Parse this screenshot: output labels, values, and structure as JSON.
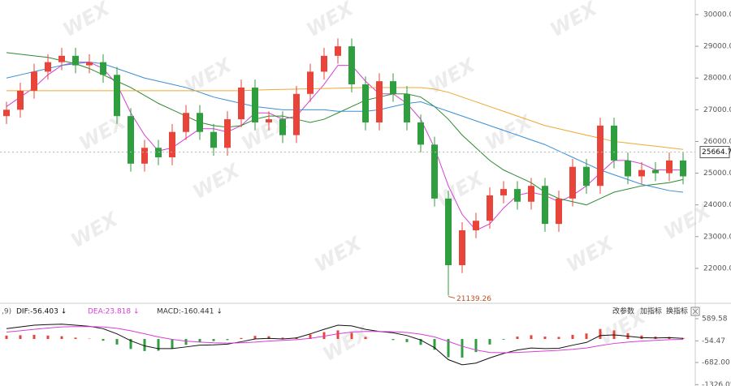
{
  "chart_data": [
    {
      "type": "candlestick",
      "up_color": "#e8443a",
      "down_color": "#2e9e3e",
      "open": [
        26800,
        27000,
        27600,
        28200,
        28500,
        28700,
        28400,
        28500,
        28100,
        26800,
        25300,
        25800,
        25500,
        26300,
        26900,
        26300,
        25800,
        26700,
        27700,
        26600,
        26700,
        26200,
        27500,
        28200,
        28700,
        29000,
        27800,
        26600,
        27900,
        27500,
        26600,
        25900,
        24200,
        22100,
        23200,
        23500,
        24300,
        24500,
        24100,
        24600,
        23400,
        24200,
        25200,
        24600,
        26500,
        25400,
        24900,
        25100,
        25000,
        25400
      ],
      "high": [
        27250,
        27850,
        28450,
        28750,
        28950,
        28950,
        28750,
        28750,
        28350,
        27050,
        26050,
        26050,
        26550,
        27150,
        27150,
        26550,
        26950,
        27950,
        27950,
        26950,
        26950,
        27750,
        28450,
        28950,
        29250,
        29250,
        28050,
        28150,
        28150,
        27750,
        26850,
        26150,
        24450,
        23450,
        23750,
        24550,
        24750,
        24750,
        24850,
        24850,
        24450,
        25450,
        25450,
        26750,
        26750,
        25650,
        25350,
        25350,
        25650,
        25650
      ],
      "low": [
        26550,
        26750,
        27350,
        27950,
        28250,
        28150,
        28150,
        27850,
        26550,
        25050,
        25050,
        25250,
        25250,
        26050,
        26050,
        25550,
        25550,
        26450,
        26350,
        26350,
        25950,
        25950,
        27250,
        27950,
        28450,
        27550,
        26350,
        26350,
        27250,
        26350,
        25650,
        23950,
        21139.26,
        21850,
        22950,
        23250,
        24050,
        23850,
        23850,
        23150,
        23150,
        23950,
        24350,
        24350,
        25150,
        24650,
        24650,
        24750,
        24750,
        24650
      ],
      "close": [
        27000,
        27600,
        28200,
        28500,
        28700,
        28400,
        28500,
        28100,
        26800,
        25300,
        25800,
        25500,
        26300,
        26900,
        26300,
        25800,
        26700,
        27700,
        26600,
        26700,
        26200,
        27500,
        28200,
        28700,
        29000,
        27800,
        26600,
        27900,
        27500,
        26600,
        25900,
        24200,
        22100,
        23200,
        23500,
        24300,
        24500,
        24100,
        24600,
        23400,
        24200,
        25200,
        24600,
        26500,
        25400,
        24900,
        25100,
        25000,
        25400,
        24900
      ],
      "series": [
        {
          "color": "#d63fd6",
          "values": [
            27100,
            27400,
            27700,
            28100,
            28400,
            28500,
            28500,
            28300,
            27800,
            26900,
            26200,
            25700,
            25800,
            26100,
            26400,
            26400,
            26300,
            26500,
            26900,
            26900,
            26700,
            26800,
            27300,
            27800,
            28400,
            28400,
            27900,
            27500,
            27500,
            27200,
            26700,
            25800,
            24600,
            23700,
            23200,
            23400,
            23900,
            24300,
            24400,
            24300,
            24100,
            24300,
            24600,
            25000,
            25400,
            25400,
            25300,
            25100,
            25100,
            25100
          ]
        },
        {
          "color": "#2e8b2e",
          "values": [
            28800,
            28750,
            28700,
            28650,
            28550,
            28450,
            28300,
            28100,
            27900,
            27700,
            27450,
            27200,
            27000,
            26800,
            26600,
            26500,
            26450,
            26500,
            26700,
            26800,
            26800,
            26700,
            26600,
            26700,
            26900,
            27100,
            27300,
            27400,
            27500,
            27500,
            27400,
            27100,
            26700,
            26200,
            25800,
            25400,
            25100,
            24900,
            24700,
            24400,
            24200,
            24100,
            24000,
            24200,
            24400,
            24500,
            24600,
            24650,
            24700,
            24800
          ]
        },
        {
          "color": "#3a8fd6",
          "values": [
            28000,
            28100,
            28200,
            28300,
            28400,
            28450,
            28500,
            28450,
            28300,
            28150,
            28000,
            27900,
            27800,
            27700,
            27550,
            27400,
            27300,
            27200,
            27100,
            27050,
            27000,
            27000,
            27000,
            27000,
            26950,
            26950,
            26950,
            27000,
            27100,
            27200,
            27250,
            27100,
            26950,
            26800,
            26650,
            26500,
            26350,
            26200,
            26050,
            25900,
            25700,
            25500,
            25300,
            25100,
            24950,
            24800,
            24650,
            24550,
            24450,
            24400
          ]
        },
        {
          "color": "#f0a830",
          "values": [
            27600,
            27600,
            27600,
            27600,
            27600,
            27600,
            27600,
            27600,
            27600,
            27600,
            27600,
            27600,
            27600,
            27600,
            27600,
            27600,
            27600,
            27600,
            27620,
            27630,
            27640,
            27650,
            27660,
            27670,
            27680,
            27690,
            27700,
            27700,
            27700,
            27700,
            27700,
            27650,
            27550,
            27400,
            27250,
            27100,
            26950,
            26800,
            26650,
            26500,
            26400,
            26300,
            26200,
            26100,
            26000,
            25950,
            25900,
            25850,
            25800,
            25750
          ]
        }
      ],
      "last_price": 25664.7,
      "ylim": [
        21000,
        30460
      ],
      "yticks": [
        {
          "value": 30000,
          "label": "30000.0"
        },
        {
          "value": 29000,
          "label": "29000.0"
        },
        {
          "value": 28000,
          "label": "28000.0"
        },
        {
          "value": 27000,
          "label": "27000.0"
        },
        {
          "value": 26000,
          "label": "26000.0"
        },
        {
          "value": 25000,
          "label": "25000.0"
        },
        {
          "value": 24000,
          "label": "24000.0"
        },
        {
          "value": 23000,
          "label": "23000.0"
        },
        {
          "value": 22000,
          "label": "22000.0"
        }
      ]
    },
    {
      "type": "macd",
      "params_label": ",9)",
      "dif_label": "DIF:-56.403 ↓",
      "dea_label": "DEA:23.818 ↓",
      "macd_label": "MACD:-160.441 ↓",
      "up_color": "#e8443a",
      "down_color": "#2e9e3e",
      "series": [
        {
          "name": "DIF",
          "color": "#111111",
          "values": [
            300,
            350,
            400,
            420,
            430,
            400,
            370,
            300,
            150,
            -50,
            -200,
            -280,
            -280,
            -230,
            -180,
            -170,
            -150,
            -80,
            0,
            20,
            0,
            30,
            150,
            280,
            400,
            380,
            280,
            220,
            180,
            100,
            -30,
            -250,
            -600,
            -750,
            -700,
            -550,
            -420,
            -320,
            -260,
            -280,
            -270,
            -180,
            -100,
            100,
            120,
            80,
            40,
            30,
            40,
            20
          ]
        },
        {
          "name": "DEA",
          "color": "#d63fd6",
          "values": [
            200,
            240,
            280,
            320,
            350,
            360,
            360,
            350,
            310,
            240,
            150,
            60,
            -10,
            -60,
            -90,
            -110,
            -120,
            -110,
            -90,
            -60,
            -40,
            -20,
            20,
            80,
            150,
            200,
            220,
            220,
            210,
            190,
            140,
            60,
            -70,
            -210,
            -320,
            -390,
            -400,
            -390,
            -370,
            -350,
            -330,
            -300,
            -260,
            -190,
            -130,
            -90,
            -60,
            -40,
            -20,
            -10
          ]
        }
      ],
      "histogram": [
        100,
        110,
        120,
        100,
        80,
        40,
        10,
        -50,
        -160,
        -290,
        -350,
        -340,
        -270,
        -170,
        -90,
        -60,
        -30,
        30,
        90,
        80,
        40,
        50,
        130,
        200,
        250,
        180,
        60,
        0,
        -30,
        -90,
        -170,
        -310,
        -530,
        -540,
        -380,
        -160,
        -20,
        70,
        110,
        70,
        60,
        120,
        160,
        290,
        250,
        170,
        100,
        70,
        60,
        30
      ],
      "ylim": [
        -1365,
        896
      ],
      "yticks": [
        589.58,
        -54.47,
        {
          "value": -682,
          "label": "-682.00"
        },
        -1326.05
      ]
    }
  ],
  "toolbar": {
    "buttons": [
      "改参数",
      "加指标",
      "换指标"
    ]
  },
  "watermark": "WEX"
}
